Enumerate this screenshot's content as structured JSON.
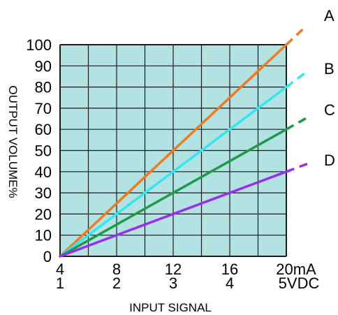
{
  "chart_data": {
    "type": "line",
    "xlabel": "INPUT SIGNAL",
    "ylabel": "OUTPUT VOLUME%",
    "xlim": [
      4,
      20
    ],
    "ylim": [
      0,
      100
    ],
    "grid": true,
    "plot_background": "#b3e2e2",
    "x_ticks_primary": [
      "4",
      "8",
      "12",
      "16",
      "20mA"
    ],
    "x_ticks_secondary": [
      "1",
      "2",
      "3",
      "4",
      "5VDC"
    ],
    "x_tick_values": [
      4,
      8,
      12,
      16,
      20
    ],
    "y_ticks": [
      "0",
      "10",
      "20",
      "30",
      "40",
      "50",
      "60",
      "70",
      "80",
      "90",
      "100"
    ],
    "y_tick_values": [
      0,
      10,
      20,
      30,
      40,
      50,
      60,
      70,
      80,
      90,
      100
    ],
    "series": [
      {
        "name": "A",
        "color": "#f07a22",
        "x": [
          4,
          20
        ],
        "y": [
          0,
          100
        ]
      },
      {
        "name": "B",
        "color": "#33e6f0",
        "x": [
          4,
          20
        ],
        "y": [
          0,
          80
        ]
      },
      {
        "name": "C",
        "color": "#1f9a48",
        "x": [
          4,
          20
        ],
        "y": [
          0,
          60
        ]
      },
      {
        "name": "D",
        "color": "#9a2df0",
        "x": [
          4,
          20
        ],
        "y": [
          0,
          40
        ]
      }
    ]
  }
}
